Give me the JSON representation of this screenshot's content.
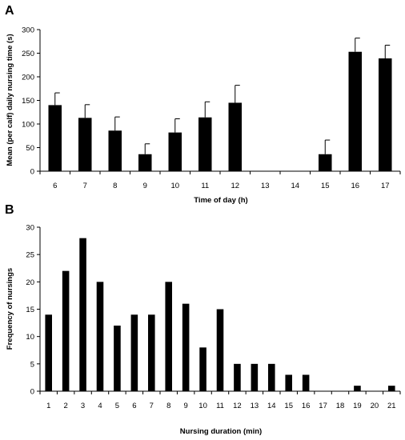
{
  "chart_data": [
    {
      "panel_label": "A",
      "type": "bar",
      "xlabel": "Time of day (h)",
      "ylabel": "Mean (per calf) daily nursing time (s)",
      "categories": [
        "6",
        "7",
        "8",
        "9",
        "10",
        "11",
        "12",
        "13",
        "14",
        "15",
        "16",
        "17"
      ],
      "values": [
        140,
        113,
        86,
        36,
        82,
        114,
        145,
        0,
        0,
        36,
        253,
        239
      ],
      "error": [
        26,
        28,
        29,
        22,
        29,
        33,
        37,
        0,
        0,
        30,
        29,
        28
      ],
      "ylim": [
        0,
        300
      ],
      "yticks": [
        0,
        50,
        100,
        150,
        200,
        250,
        300
      ],
      "grid": false,
      "bar_color": "#000000"
    },
    {
      "panel_label": "B",
      "type": "bar",
      "xlabel": "Nursing duration (min)",
      "ylabel": "Frequency of nursings",
      "categories": [
        "1",
        "2",
        "3",
        "4",
        "5",
        "6",
        "7",
        "8",
        "9",
        "10",
        "11",
        "12",
        "13",
        "14",
        "15",
        "16",
        "17",
        "18",
        "19",
        "20",
        "21"
      ],
      "values": [
        14,
        22,
        28,
        20,
        12,
        14,
        14,
        20,
        16,
        8,
        15,
        5,
        5,
        5,
        3,
        3,
        0,
        0,
        1,
        0,
        1
      ],
      "ylim": [
        0,
        30
      ],
      "yticks": [
        0,
        5,
        10,
        15,
        20,
        25,
        30
      ],
      "grid": false,
      "bar_color": "#000000"
    }
  ]
}
